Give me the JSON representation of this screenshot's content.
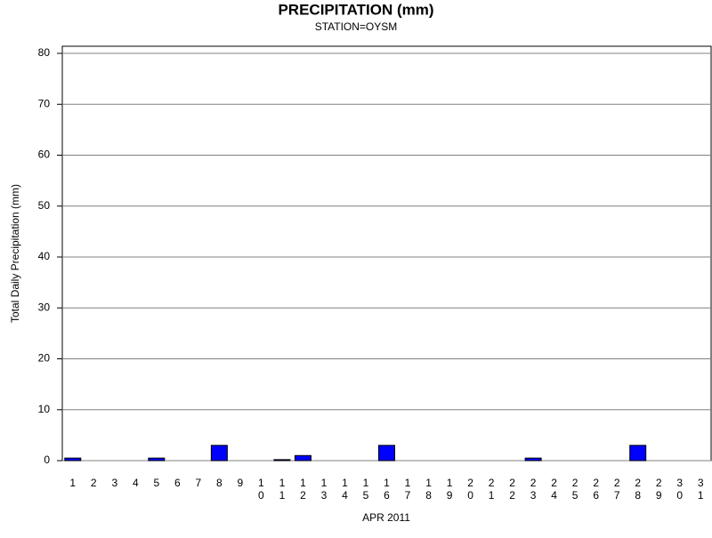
{
  "chart_data": {
    "type": "bar",
    "title": "PRECIPITATION (mm)",
    "subtitle": "STATION=OYSM",
    "x_label": "APR 2011",
    "y_label": "Total Daily Precipitation (mm)",
    "categories": [
      "1",
      "2",
      "3",
      "4",
      "5",
      "6",
      "7",
      "8",
      "9",
      "10",
      "11",
      "12",
      "13",
      "14",
      "15",
      "16",
      "17",
      "18",
      "19",
      "20",
      "21",
      "22",
      "23",
      "24",
      "25",
      "26",
      "27",
      "28",
      "29",
      "30",
      "31"
    ],
    "values": [
      0.5,
      0,
      0,
      0,
      0.5,
      0,
      0,
      3,
      0,
      0,
      0.2,
      1,
      0,
      0,
      0,
      3,
      0,
      0,
      0,
      0,
      0,
      0,
      0.5,
      0,
      0,
      0,
      0,
      3,
      0,
      0,
      0
    ],
    "color": "#0000ff",
    "ylim": [
      0,
      81.4
    ],
    "yticks": [
      0,
      10,
      20,
      30,
      40,
      50,
      60,
      70,
      80
    ],
    "grid": true
  }
}
